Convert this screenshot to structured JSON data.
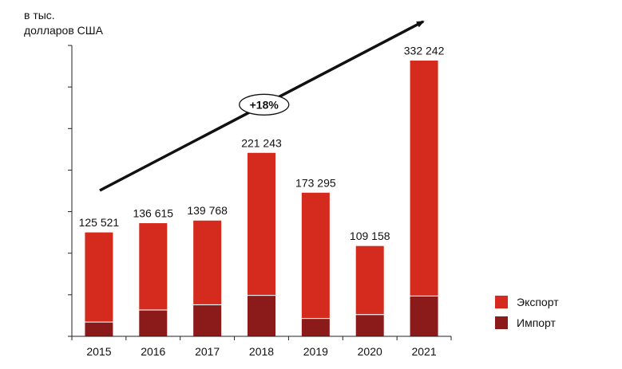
{
  "chart_data": {
    "type": "bar",
    "stacked": true,
    "unit_label_line1": "в тыс.",
    "unit_label_line2": "долларов США",
    "categories": [
      "2015",
      "2016",
      "2017",
      "2018",
      "2019",
      "2020",
      "2021"
    ],
    "series": [
      {
        "name": "Импорт",
        "color": "#8b1a1a",
        "values": [
          17200,
          31700,
          38000,
          49300,
          21500,
          26200,
          48500
        ]
      },
      {
        "name": "Экспорт",
        "color": "#d52b1e",
        "values": [
          108321,
          104915,
          101768,
          171943,
          151795,
          82958,
          283742
        ]
      }
    ],
    "totals": [
      125521,
      136615,
      139768,
      221243,
      173295,
      109158,
      332242
    ],
    "total_labels": [
      "125 521",
      "136 615",
      "139 768",
      "221 243",
      "173 295",
      "109 158",
      "332 242"
    ],
    "trend_label": "+18%",
    "ylim": [
      0,
      350000
    ],
    "y_tick_step": 50000,
    "y_tick_labels_shown": false,
    "legend_position": "bottom-right",
    "legend": [
      {
        "name": "Экспорт",
        "color": "#d52b1e"
      },
      {
        "name": "Импорт",
        "color": "#8b1a1a"
      }
    ]
  }
}
